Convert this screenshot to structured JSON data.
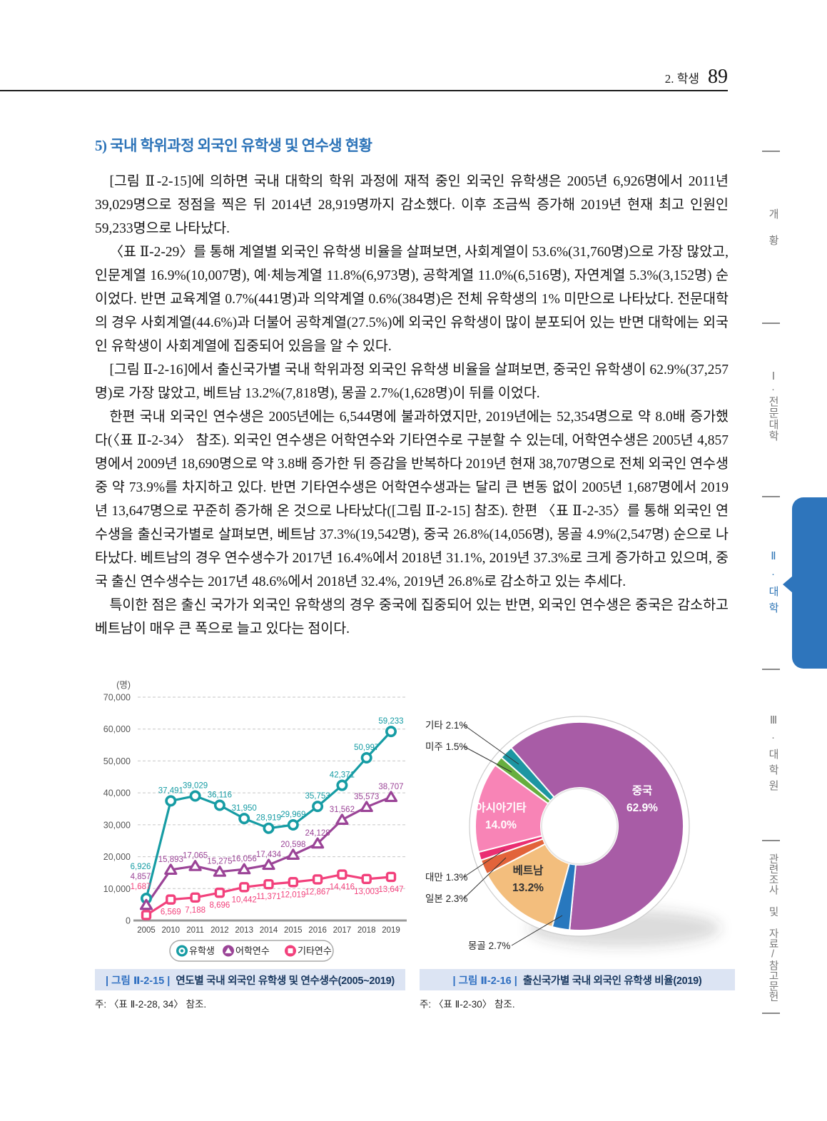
{
  "header": {
    "section": "2. 학생",
    "page_number": "89"
  },
  "title": "5) 국내 학위과정 외국인 유학생 및 연수생 현황",
  "paragraphs": [
    "[그림 Ⅱ-2-15]에 의하면 국내 대학의 학위 과정에 재적 중인 외국인 유학생은 2005년 6,926명에서 2011년 39,029명으로 정점을 찍은 뒤 2014년 28,919명까지 감소했다. 이후 조금씩 증가해 2019년 현재 최고 인원인 59,233명으로 나타났다.",
    "〈표 Ⅱ-2-29〉를 통해 계열별 외국인 유학생 비율을 살펴보면, 사회계열이 53.6%(31,760명)으로 가장 많았고, 인문계열 16.9%(10,007명), 예·체능계열 11.8%(6,973명), 공학계열 11.0%(6,516명), 자연계열 5.3%(3,152명) 순이었다. 반면 교육계열 0.7%(441명)과 의약계열 0.6%(384명)은 전체 유학생의 1% 미만으로 나타났다. 전문대학의 경우 사회계열(44.6%)과 더불어 공학계열(27.5%)에 외국인 유학생이 많이 분포되어 있는 반면 대학에는 외국인 유학생이 사회계열에 집중되어 있음을 알 수 있다.",
    "[그림 Ⅱ-2-16]에서 출신국가별 국내 학위과정 외국인 유학생 비율을 살펴보면, 중국인 유학생이 62.9%(37,257명)로 가장 많았고, 베트남 13.2%(7,818명), 몽골 2.7%(1,628명)이 뒤를 이었다.",
    "한편 국내 외국인 연수생은 2005년에는 6,544명에 불과하였지만, 2019년에는 52,354명으로 약 8.0배 증가했다(〈표 Ⅱ-2-34〉 참조). 외국인 연수생은 어학연수와 기타연수로 구분할 수 있는데, 어학연수생은 2005년 4,857명에서 2009년 18,690명으로 약 3.8배 증가한 뒤 증감을 반복하다 2019년 현재 38,707명으로 전체 외국인 연수생 중 약 73.9%를 차지하고 있다. 반면 기타연수생은 어학연수생과는 달리 큰 변동 없이 2005년 1,687명에서 2019년 13,647명으로 꾸준히 증가해 온 것으로 나타났다([그림 Ⅱ-2-15] 참조). 한편 〈표 Ⅱ-2-35〉를 통해 외국인 연수생을 출신국가별로 살펴보면, 베트남 37.3%(19,542명), 중국 26.8%(14,056명), 몽골 4.9%(2,547명) 순으로 나타났다. 베트남의 경우 연수생수가 2017년 16.4%에서 2018년 31.1%, 2019년 37.3%로 크게 증가하고 있으며, 중국 출신 연수생수는 2017년 48.6%에서 2018년 32.4%, 2019년 26.8%로 감소하고 있는 추세다.",
    "특이한 점은 출신 국가가 외국인 유학생의 경우 중국에 집중되어 있는 반면, 외국인 연수생은 중국은 감소하고 베트남이 매우 큰 폭으로 늘고 있다는 점이다."
  ],
  "sidebar": {
    "items": [
      {
        "label": "개황",
        "active": false
      },
      {
        "label": "Ⅰ·전문대학",
        "active": false
      },
      {
        "label": "Ⅱ·대학",
        "active": true
      },
      {
        "label": "Ⅲ·대학원",
        "active": false
      },
      {
        "label": "관련조사 및 자료/참고문헌",
        "active": false
      }
    ],
    "active_color": "#2E75BC"
  },
  "figures": [
    {
      "label": "| 그림 Ⅱ-2-15 |",
      "title": "연도별 국내 외국인 유학생 및 연수생수(2005~2019)",
      "note": "주: 〈표 Ⅱ-2-28, 34〉 참조."
    },
    {
      "label": "| 그림 Ⅱ-2-16 |",
      "title": "출신국가별 국내 외국인 유학생 비율(2019)",
      "note": "주: 〈표 Ⅱ-2-30〉 참조."
    }
  ],
  "chart_data": [
    {
      "type": "line",
      "unit": "(명)",
      "categories": [
        "2005",
        "2010",
        "2011",
        "2012",
        "2013",
        "2014",
        "2015",
        "2016",
        "2017",
        "2018",
        "2019"
      ],
      "series": [
        {
          "name": "유학생",
          "marker": "circle",
          "color": "#169CA4",
          "values": [
            6926,
            37491,
            39029,
            36116,
            31950,
            28919,
            29969,
            35753,
            42371,
            50997,
            59233
          ]
        },
        {
          "name": "어학연수",
          "marker": "triangle",
          "color": "#9B4497",
          "values": [
            4857,
            15893,
            17065,
            15275,
            16056,
            17434,
            20598,
            24128,
            31562,
            35573,
            38707
          ]
        },
        {
          "name": "기타연수",
          "marker": "square",
          "color": "#F2417C",
          "values": [
            1687,
            6569,
            7188,
            8696,
            10442,
            11371,
            12019,
            12867,
            14416,
            13003,
            13647
          ]
        }
      ],
      "ylim": [
        0,
        70000
      ],
      "ytick_step": 10000,
      "grid": "dashed",
      "legend_position": "bottom"
    },
    {
      "type": "pie",
      "subtype": "donut",
      "start_angle_deg": -41,
      "slices": [
        {
          "label": "중국",
          "pct": "62.9",
          "color": "#A85CA6",
          "text_color": "#ffffff"
        },
        {
          "label": "몽골",
          "pct": "2.7",
          "color": "#2878BE"
        },
        {
          "label": "베트남",
          "pct": "13.2",
          "color": "#F3BE7D",
          "text_color": "#333333"
        },
        {
          "label": "일본",
          "pct": "2.3",
          "color": "#E2633A"
        },
        {
          "label": "대만",
          "pct": "1.3",
          "color": "#EA2E72"
        },
        {
          "label": "아시아기타",
          "pct": "14.0",
          "color": "#F884B6",
          "text_color": "#ffffff"
        },
        {
          "label": "미주",
          "pct": "1.5",
          "color": "#67AE3E"
        },
        {
          "label": "기타",
          "pct": "2.1",
          "color": "#1D96A2"
        }
      ]
    }
  ]
}
